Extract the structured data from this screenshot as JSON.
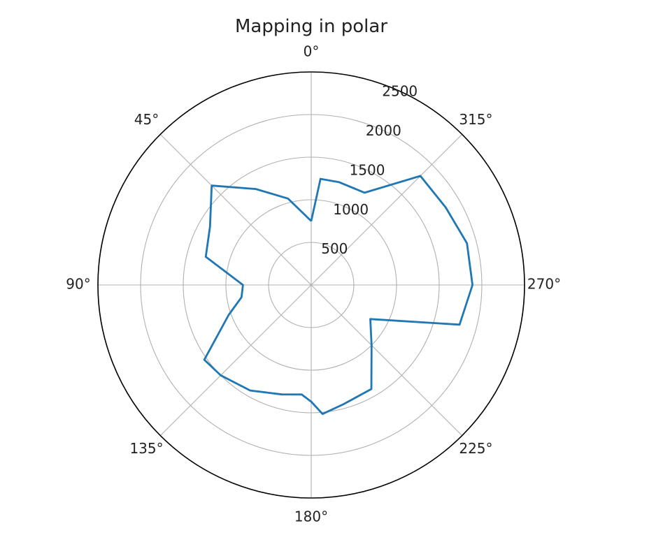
{
  "chart_data": {
    "type": "line",
    "projection": "polar",
    "title": "Mapping in polar",
    "theta_zero_location": "top",
    "theta_direction": "counter-clockwise",
    "theta_ticks": [
      0,
      45,
      90,
      135,
      180,
      225,
      270,
      315
    ],
    "theta_tick_labels": [
      "0°",
      "45°",
      "90°",
      "135°",
      "180°",
      "225°",
      "270°",
      "315°"
    ],
    "r_ticks": [
      500,
      1000,
      1500,
      2000,
      2500
    ],
    "r_tick_labels": [
      "500",
      "1000",
      "1500",
      "2000",
      "2500"
    ],
    "rlim": [
      0,
      2500
    ],
    "grid": true,
    "line_color": "#1f77b4",
    "series": [
      {
        "theta": [
          0,
          15,
          30,
          45,
          60,
          75,
          90,
          100,
          110,
          125,
          135,
          150,
          165,
          175,
          180,
          185,
          195,
          210,
          225,
          240,
          255,
          270,
          285,
          300,
          315,
          330,
          345,
          355,
          0
        ],
        "r": [
          750,
          1050,
          1300,
          1650,
          1370,
          1280,
          800,
          830,
          1030,
          1530,
          1500,
          1430,
          1330,
          1290,
          1370,
          1520,
          1450,
          1410,
          1000,
          800,
          1800,
          1890,
          1890,
          1820,
          1810,
          1250,
          1250,
          1250,
          750
        ]
      }
    ]
  }
}
